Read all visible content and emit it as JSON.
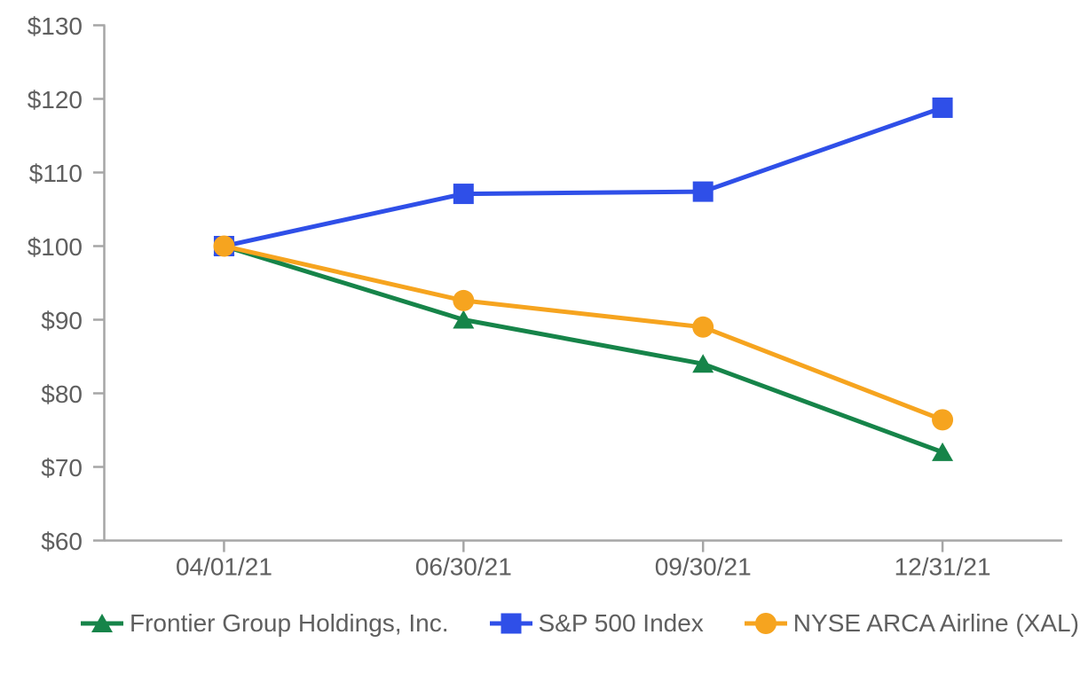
{
  "chart_data": {
    "type": "line",
    "title": "",
    "categories": [
      "04/01/21",
      "06/30/21",
      "09/30/21",
      "12/31/21"
    ],
    "series": [
      {
        "name": "Frontier Group Holdings, Inc.",
        "values": [
          100,
          90,
          84,
          72
        ],
        "color": "#168449",
        "marker": "triangle"
      },
      {
        "name": "S&P 500 Index",
        "values": [
          100,
          107.1,
          107.4,
          118.8
        ],
        "color": "#2f4fe8",
        "marker": "square"
      },
      {
        "name": "NYSE ARCA Airline (XAL)",
        "values": [
          100,
          92.6,
          89,
          76.4
        ],
        "color": "#f6a41f",
        "marker": "circle"
      }
    ],
    "y_axis": {
      "min": 60,
      "max": 130,
      "step": 10,
      "tick_labels": [
        "$60",
        "$70",
        "$80",
        "$90",
        "$100",
        "$110",
        "$120",
        "$130"
      ]
    },
    "grid": false,
    "legend_position": "bottom"
  },
  "colors": {
    "axis": "#a6a6a6",
    "text": "#5f5f5f",
    "background": "#ffffff"
  }
}
